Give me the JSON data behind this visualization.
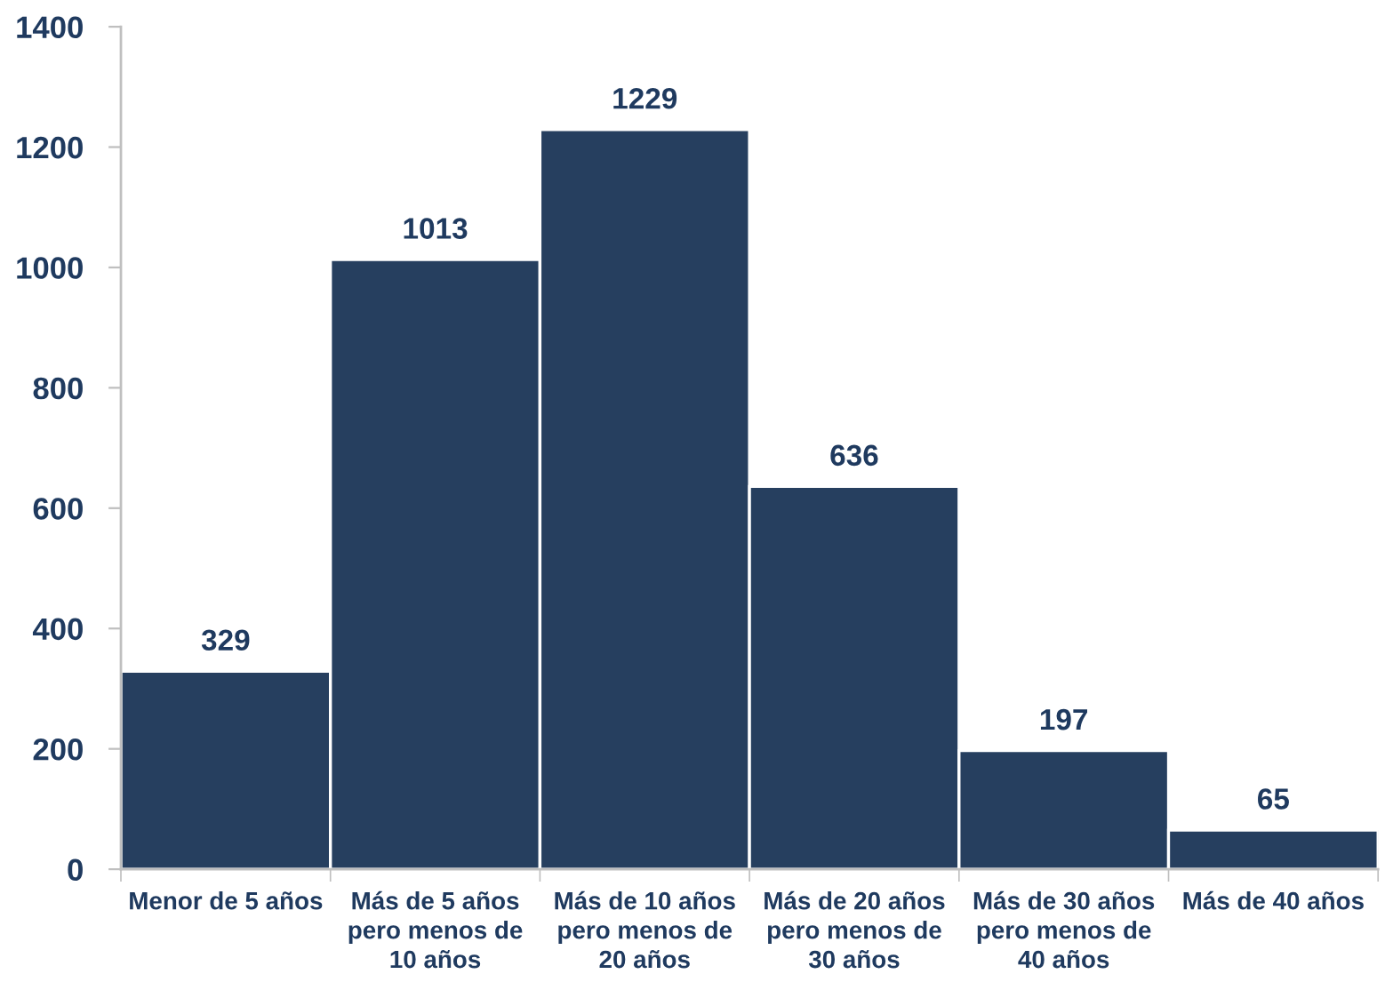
{
  "chart_data": {
    "type": "bar",
    "categories": [
      "Menor de 5 años",
      "Más de 5 años pero menos de 10 años",
      "Más de 10 años pero menos de 20 años",
      "Más de 20 años pero menos de 30 años",
      "Más de 30 años pero menos de 40 años",
      "Más de 40 años"
    ],
    "values": [
      329,
      1013,
      1229,
      636,
      197,
      65
    ],
    "color": "#263f5f",
    "ylim": [
      0,
      1400
    ],
    "yticks": [
      0,
      200,
      400,
      600,
      800,
      1000,
      1200,
      1400
    ],
    "data_labels": true,
    "grid": false,
    "legend": false
  }
}
